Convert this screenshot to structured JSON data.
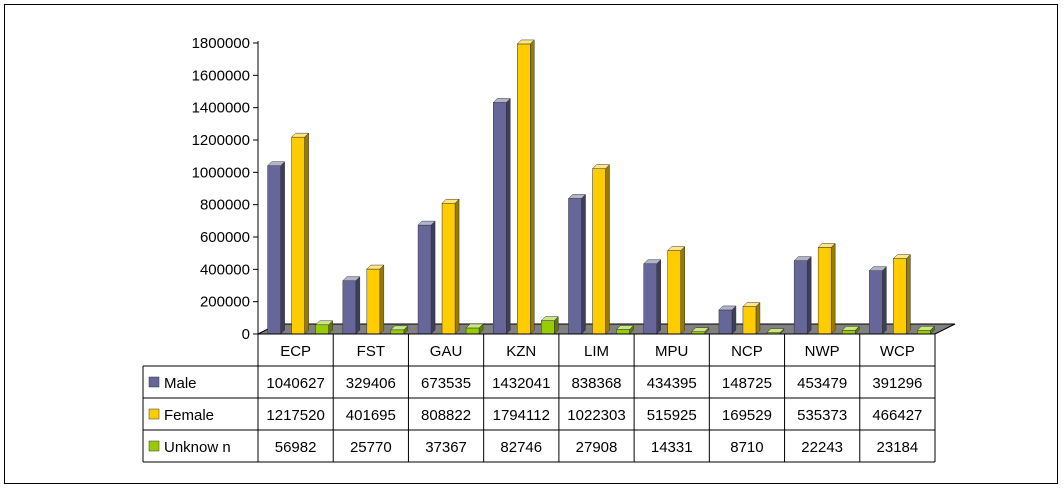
{
  "chart_data": {
    "type": "bar",
    "three_d": true,
    "title": "",
    "xlabel": "",
    "ylabel": "",
    "categories": [
      "ECP",
      "FST",
      "GAU",
      "KZN",
      "LIM",
      "MPU",
      "NCP",
      "NWP",
      "WCP"
    ],
    "series": [
      {
        "name": "Male",
        "color": "#666699",
        "values": [
          1040627,
          329406,
          673535,
          1432041,
          838368,
          434395,
          148725,
          453479,
          391296
        ]
      },
      {
        "name": "Female",
        "color": "#FFCC00",
        "values": [
          1217520,
          401695,
          808822,
          1794112,
          1022303,
          515925,
          169529,
          535373,
          466427
        ]
      },
      {
        "name": "Unknow n",
        "color": "#99CC00",
        "values": [
          56982,
          25770,
          37367,
          82746,
          27908,
          14331,
          8710,
          22243,
          23184
        ]
      }
    ],
    "y_ticks": [
      "0",
      "200000",
      "400000",
      "600000",
      "800000",
      "1000000",
      "1200000",
      "1400000",
      "1600000",
      "1800000"
    ],
    "ylim": [
      0,
      1800000
    ],
    "legend": "data table",
    "grid": false
  }
}
